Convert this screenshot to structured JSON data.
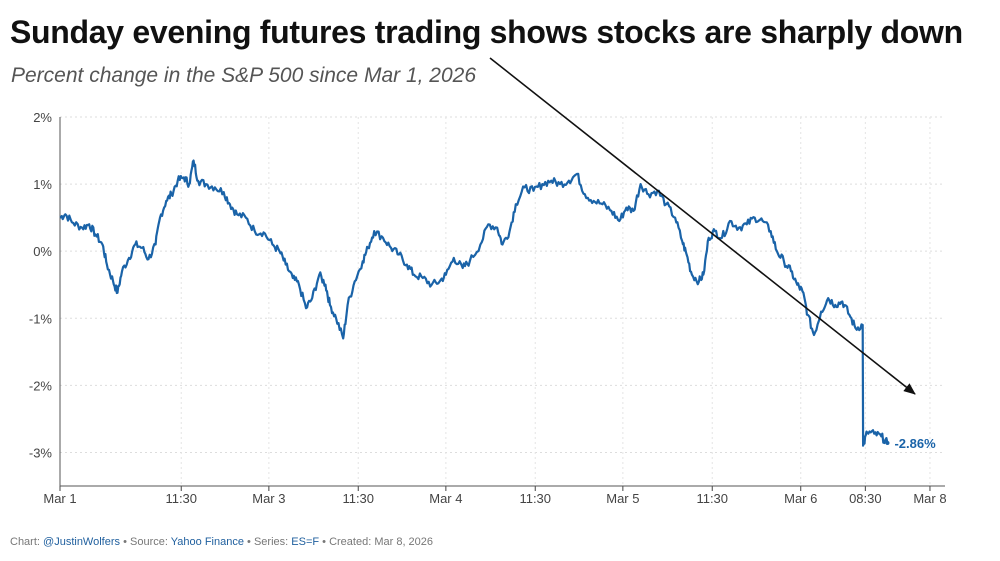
{
  "title": "Sunday evening futures trading shows stocks are sharply down",
  "subtitle": "Percent change in the S&P 500 since Mar 1, 2026",
  "chart_data": {
    "type": "line",
    "title": "Sunday evening futures trading shows stocks are sharply down",
    "subtitle": "Percent change in the S&P 500 since Mar 1, 2026",
    "xlabel": "",
    "ylabel": "",
    "ylim": [
      -3.5,
      2.0
    ],
    "xlim": [
      0,
      100
    ],
    "grid": true,
    "y_ticks": [
      2,
      1,
      0,
      -1,
      -2,
      -3
    ],
    "y_tick_labels": [
      "2%",
      "1%",
      "0%",
      "-1%",
      "-2%",
      "-3%"
    ],
    "x_ticks": [
      {
        "x": 0.0,
        "label": "Mar 1"
      },
      {
        "x": 13.7,
        "label": "11:30"
      },
      {
        "x": 23.6,
        "label": "Mar 3"
      },
      {
        "x": 33.7,
        "label": "11:30"
      },
      {
        "x": 43.6,
        "label": "Mar 4"
      },
      {
        "x": 53.7,
        "label": "11:30"
      },
      {
        "x": 63.6,
        "label": "Mar 5"
      },
      {
        "x": 73.7,
        "label": "11:30"
      },
      {
        "x": 83.7,
        "label": "Mar 6"
      },
      {
        "x": 91.0,
        "label": "08:30"
      },
      {
        "x": 98.3,
        "label": "Mar 8"
      }
    ],
    "series": [
      {
        "name": "ES=F",
        "color": "#1a63a8",
        "points": [
          [
            0.0,
            0.5
          ],
          [
            0.6,
            0.55
          ],
          [
            1.5,
            0.42
          ],
          [
            2.5,
            0.35
          ],
          [
            3.3,
            0.4
          ],
          [
            4.0,
            0.25
          ],
          [
            4.8,
            0.1
          ],
          [
            5.3,
            -0.2
          ],
          [
            6.0,
            -0.45
          ],
          [
            6.5,
            -0.62
          ],
          [
            7.0,
            -0.3
          ],
          [
            7.8,
            -0.1
          ],
          [
            8.5,
            0.1
          ],
          [
            9.3,
            0.05
          ],
          [
            10.0,
            -0.12
          ],
          [
            10.8,
            0.1
          ],
          [
            11.3,
            0.5
          ],
          [
            12.0,
            0.75
          ],
          [
            12.6,
            0.85
          ],
          [
            13.3,
            1.05
          ],
          [
            14.0,
            1.1
          ],
          [
            14.6,
            1.0
          ],
          [
            15.1,
            1.35
          ],
          [
            15.6,
            1.05
          ],
          [
            16.5,
            1.0
          ],
          [
            17.5,
            0.95
          ],
          [
            18.5,
            0.88
          ],
          [
            19.2,
            0.7
          ],
          [
            20.0,
            0.55
          ],
          [
            21.0,
            0.5
          ],
          [
            22.0,
            0.3
          ],
          [
            23.0,
            0.28
          ],
          [
            24.0,
            0.1
          ],
          [
            24.8,
            0.0
          ],
          [
            25.5,
            -0.2
          ],
          [
            26.3,
            -0.4
          ],
          [
            27.0,
            -0.5
          ],
          [
            27.8,
            -0.85
          ],
          [
            28.5,
            -0.7
          ],
          [
            29.3,
            -0.35
          ],
          [
            30.0,
            -0.5
          ],
          [
            30.5,
            -0.8
          ],
          [
            31.2,
            -1.0
          ],
          [
            32.0,
            -1.3
          ],
          [
            32.5,
            -0.8
          ],
          [
            33.3,
            -0.45
          ],
          [
            34.2,
            -0.15
          ],
          [
            34.8,
            0.05
          ],
          [
            35.5,
            0.3
          ],
          [
            36.5,
            0.2
          ],
          [
            37.4,
            0.05
          ],
          [
            38.3,
            -0.05
          ],
          [
            39.2,
            -0.2
          ],
          [
            40.0,
            -0.35
          ],
          [
            41.0,
            -0.4
          ],
          [
            42.0,
            -0.5
          ],
          [
            42.9,
            -0.45
          ],
          [
            43.6,
            -0.35
          ],
          [
            44.5,
            -0.1
          ],
          [
            45.5,
            -0.25
          ],
          [
            46.3,
            -0.15
          ],
          [
            47.5,
            0.1
          ],
          [
            48.4,
            0.4
          ],
          [
            49.4,
            0.35
          ],
          [
            50.0,
            0.1
          ],
          [
            50.8,
            0.3
          ],
          [
            51.5,
            0.7
          ],
          [
            52.5,
            0.95
          ],
          [
            53.5,
            0.9
          ],
          [
            54.5,
            1.0
          ],
          [
            55.5,
            1.05
          ],
          [
            56.5,
            1.0
          ],
          [
            57.5,
            1.05
          ],
          [
            58.4,
            1.15
          ],
          [
            59.3,
            0.85
          ],
          [
            60.3,
            0.75
          ],
          [
            61.3,
            0.7
          ],
          [
            62.3,
            0.6
          ],
          [
            63.2,
            0.45
          ],
          [
            64.0,
            0.65
          ],
          [
            64.8,
            0.6
          ],
          [
            65.6,
            1.0
          ],
          [
            66.5,
            0.85
          ],
          [
            67.5,
            0.9
          ],
          [
            68.5,
            0.7
          ],
          [
            69.5,
            0.5
          ],
          [
            70.3,
            0.15
          ],
          [
            70.8,
            -0.05
          ],
          [
            71.4,
            -0.35
          ],
          [
            72.2,
            -0.45
          ],
          [
            72.7,
            -0.35
          ],
          [
            73.3,
            0.2
          ],
          [
            74.0,
            0.3
          ],
          [
            74.8,
            0.2
          ],
          [
            75.7,
            0.45
          ],
          [
            76.7,
            0.35
          ],
          [
            77.6,
            0.4
          ],
          [
            78.5,
            0.5
          ],
          [
            79.4,
            0.45
          ],
          [
            80.3,
            0.3
          ],
          [
            81.0,
            0.0
          ],
          [
            81.8,
            -0.15
          ],
          [
            82.6,
            -0.3
          ],
          [
            83.3,
            -0.5
          ],
          [
            83.9,
            -0.6
          ],
          [
            84.5,
            -0.95
          ],
          [
            85.2,
            -1.25
          ],
          [
            86.0,
            -0.9
          ],
          [
            86.8,
            -0.7
          ],
          [
            87.6,
            -0.8
          ],
          [
            88.4,
            -0.75
          ],
          [
            89.2,
            -0.95
          ],
          [
            89.9,
            -1.15
          ],
          [
            90.7,
            -1.1
          ],
          [
            90.75,
            -2.9
          ],
          [
            91.2,
            -2.7
          ],
          [
            92.0,
            -2.72
          ],
          [
            92.8,
            -2.76
          ],
          [
            93.5,
            -2.86
          ]
        ]
      }
    ],
    "end_label": "-2.86%",
    "end_value": -2.86,
    "annotation": "arrow from title pointing to Sunday evening drop"
  },
  "footer": {
    "chart_prefix": "Chart:",
    "author": "@JustinWolfers",
    "source_prefix": "Source:",
    "source": "Yahoo Finance",
    "series_prefix": "Series:",
    "series": "ES=F",
    "created": "Created: Mar 8, 2026",
    "sep": "•"
  }
}
